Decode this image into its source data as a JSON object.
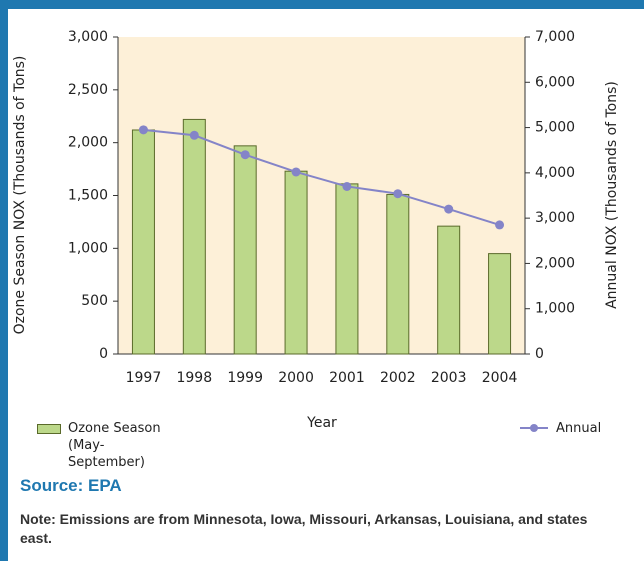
{
  "chart_data": {
    "type": "bar",
    "x_label": "Year",
    "y_label": "Ozone Season NOX (Thousands of Tons)",
    "y2_label": "Annual NOX (Thousands of Tons)",
    "categories": [
      "1997",
      "1998",
      "1999",
      "2000",
      "2001",
      "2002",
      "2003",
      "2004"
    ],
    "series": [
      {
        "name": "Ozone Season (May-September)",
        "type": "bar",
        "color": "#bcd88a",
        "values": [
          2120,
          2220,
          1970,
          1730,
          1610,
          1510,
          1210,
          950
        ]
      },
      {
        "name": "Annual",
        "type": "line",
        "axis": "y2",
        "color": "#8484c8",
        "values": [
          4950,
          4830,
          4400,
          4020,
          3700,
          3540,
          3200,
          2850
        ]
      }
    ],
    "ylim": [
      0,
      3000
    ],
    "yticks": [
      0,
      500,
      {
        "value": 1000,
        "label": "1,000"
      },
      {
        "value": 1500,
        "label": "1,500"
      },
      {
        "value": 2000,
        "label": "2,000"
      },
      {
        "value": 2500,
        "label": "2,500"
      },
      {
        "value": 3000,
        "label": "3,000"
      }
    ],
    "y2lim": [
      0,
      7000
    ],
    "y2ticks": [
      0,
      {
        "value": 1000,
        "label": "1,000"
      },
      {
        "value": 2000,
        "label": "2,000"
      },
      {
        "value": 3000,
        "label": "3,000"
      },
      {
        "value": 4000,
        "label": "4,000"
      },
      {
        "value": 5000,
        "label": "5,000"
      },
      {
        "value": 6000,
        "label": "6,000"
      },
      {
        "value": 7000,
        "label": "7,000"
      }
    ],
    "source": "Source: EPA",
    "note": "Note: Emissions are from Minnesota, Iowa, Missouri, Arkansas, Louisiana, and states east."
  }
}
